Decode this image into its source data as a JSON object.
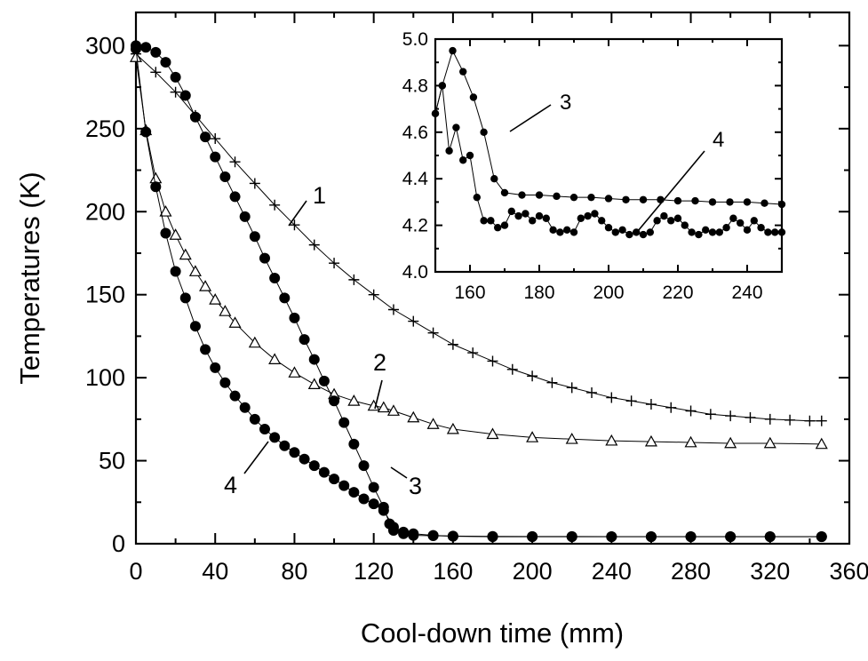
{
  "chart_data": [
    {
      "type": "line",
      "xlabel": "Cool-down time (mm)",
      "ylabel": "Temperatures (K)",
      "xlim": [
        0,
        360
      ],
      "ylim": [
        0,
        320
      ],
      "x_ticks": [
        0,
        40,
        80,
        120,
        160,
        200,
        240,
        280,
        320,
        360
      ],
      "y_ticks": [
        0,
        50,
        100,
        150,
        200,
        250,
        300
      ],
      "grid": false,
      "series": [
        {
          "name": "1",
          "marker": "plus",
          "x": [
            0,
            10,
            20,
            30,
            40,
            50,
            60,
            70,
            80,
            90,
            100,
            110,
            120,
            130,
            140,
            150,
            160,
            170,
            180,
            190,
            200,
            210,
            220,
            230,
            240,
            250,
            260,
            270,
            280,
            290,
            300,
            310,
            320,
            330,
            340,
            346
          ],
          "y": [
            295,
            284,
            272,
            258,
            244,
            230,
            217,
            204,
            192,
            180,
            169,
            159,
            150,
            141,
            134,
            127,
            120,
            115,
            110,
            105,
            101,
            97,
            94,
            91,
            88,
            86,
            84,
            82,
            80,
            78,
            77,
            76,
            75,
            74.5,
            74,
            74
          ]
        },
        {
          "name": "2",
          "marker": "open-triangle",
          "x": [
            0,
            5,
            10,
            15,
            20,
            25,
            30,
            35,
            40,
            45,
            50,
            60,
            70,
            80,
            90,
            100,
            110,
            120,
            125,
            130,
            140,
            150,
            160,
            180,
            200,
            220,
            240,
            260,
            280,
            300,
            320,
            346
          ],
          "y": [
            293,
            249,
            220,
            200,
            186,
            174,
            164,
            155,
            147,
            140,
            133,
            121,
            111,
            103,
            96,
            90,
            86,
            83,
            82,
            80,
            76,
            72,
            69,
            66,
            64,
            63,
            62,
            61.5,
            61,
            60.5,
            60.5,
            60
          ]
        },
        {
          "name": "3",
          "marker": "filled-circle",
          "x": [
            0,
            5,
            10,
            15,
            20,
            25,
            30,
            35,
            40,
            45,
            50,
            55,
            60,
            65,
            70,
            75,
            80,
            85,
            90,
            95,
            100,
            105,
            110,
            115,
            120,
            125,
            128,
            130,
            135,
            140,
            150,
            160,
            180,
            200,
            220,
            240,
            260,
            280,
            300,
            320,
            346
          ],
          "y": [
            300,
            299,
            296,
            290,
            281,
            270,
            257,
            245,
            233,
            221,
            209,
            197,
            185,
            172,
            160,
            148,
            136,
            123,
            111,
            98,
            86,
            73,
            60,
            47,
            34,
            22,
            12,
            8,
            6,
            5,
            4.8,
            4.6,
            4.4,
            4.35,
            4.32,
            4.31,
            4.3,
            4.3,
            4.3,
            4.3,
            4.29
          ]
        },
        {
          "name": "4",
          "marker": "filled-circle",
          "x": [
            0,
            5,
            10,
            15,
            20,
            25,
            30,
            35,
            40,
            45,
            50,
            55,
            60,
            65,
            70,
            75,
            80,
            85,
            90,
            95,
            100,
            105,
            110,
            115,
            120,
            125,
            130,
            135,
            140,
            150,
            160,
            180,
            200,
            220,
            240,
            260,
            280,
            300,
            320,
            346
          ],
          "y": [
            298,
            248,
            215,
            187,
            164,
            148,
            131,
            117,
            106,
            97,
            89,
            82,
            75,
            69,
            64,
            59,
            55,
            51,
            47,
            43,
            39,
            35,
            31,
            27,
            24,
            20,
            10,
            7,
            6,
            5,
            4.5,
            4.2,
            4.2,
            4.2,
            4.2,
            4.2,
            4.2,
            4.2,
            4.2,
            4.2
          ]
        }
      ],
      "annotations": [
        "1",
        "2",
        "3",
        "4"
      ]
    },
    {
      "type": "line",
      "xlabel": "",
      "ylabel": "",
      "xlim": [
        150,
        250
      ],
      "ylim": [
        4.0,
        5.0
      ],
      "x_ticks": [
        160,
        180,
        200,
        220,
        240
      ],
      "y_ticks": [
        "4.0",
        "4.2",
        "4.4",
        "4.6",
        "4.8",
        "5.0"
      ],
      "grid": false,
      "series": [
        {
          "name": "3",
          "marker": "filled-circle",
          "x": [
            150,
            152,
            155,
            158,
            161,
            164,
            167,
            170,
            175,
            180,
            185,
            190,
            195,
            200,
            205,
            210,
            215,
            220,
            225,
            230,
            235,
            240,
            245,
            250
          ],
          "y": [
            4.68,
            4.8,
            4.95,
            4.86,
            4.75,
            4.6,
            4.4,
            4.34,
            4.33,
            4.33,
            4.325,
            4.32,
            4.32,
            4.315,
            4.31,
            4.31,
            4.31,
            4.305,
            4.305,
            4.3,
            4.3,
            4.3,
            4.295,
            4.29
          ]
        },
        {
          "name": "4",
          "marker": "filled-circle",
          "x": [
            150,
            152,
            154,
            156,
            158,
            160,
            162,
            164,
            166,
            168,
            170,
            172,
            174,
            176,
            178,
            180,
            182,
            184,
            186,
            188,
            190,
            192,
            194,
            196,
            198,
            200,
            202,
            204,
            206,
            208,
            210,
            212,
            214,
            216,
            218,
            220,
            222,
            224,
            226,
            228,
            230,
            232,
            234,
            236,
            238,
            240,
            242,
            244,
            246,
            248,
            250
          ],
          "y": [
            4.68,
            4.8,
            4.52,
            4.62,
            4.48,
            4.5,
            4.32,
            4.22,
            4.22,
            4.19,
            4.2,
            4.26,
            4.24,
            4.25,
            4.22,
            4.24,
            4.23,
            4.18,
            4.17,
            4.18,
            4.17,
            4.23,
            4.24,
            4.25,
            4.22,
            4.19,
            4.17,
            4.18,
            4.16,
            4.17,
            4.16,
            4.17,
            4.22,
            4.24,
            4.22,
            4.23,
            4.2,
            4.17,
            4.16,
            4.18,
            4.17,
            4.17,
            4.19,
            4.23,
            4.21,
            4.18,
            4.22,
            4.19,
            4.17,
            4.17,
            4.17
          ]
        }
      ],
      "annotations": [
        "3",
        "4"
      ]
    }
  ]
}
